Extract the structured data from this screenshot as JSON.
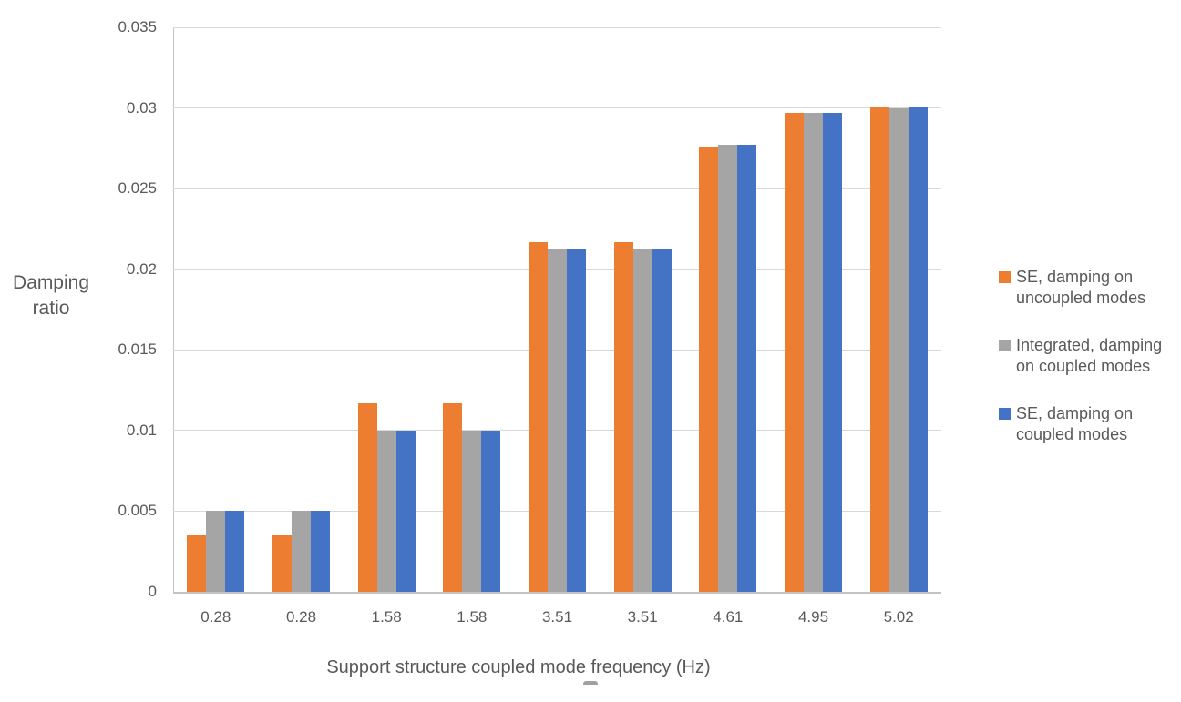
{
  "chart_data": {
    "type": "bar",
    "title": "",
    "xlabel": "Support structure coupled mode frequency (Hz)",
    "ylabel": "Damping ratio",
    "categories": [
      "0.28",
      "0.28",
      "1.58",
      "1.58",
      "3.51",
      "3.51",
      "4.61",
      "4.95",
      "5.02"
    ],
    "series": [
      {
        "name": "SE, damping on uncoupled modes",
        "color": "#ED7D31",
        "values": [
          0.0035,
          0.0035,
          0.0117,
          0.0117,
          0.0217,
          0.0217,
          0.0276,
          0.0297,
          0.0301
        ]
      },
      {
        "name": "Integrated, damping on coupled modes",
        "color": "#A5A5A5",
        "values": [
          0.005,
          0.005,
          0.01,
          0.01,
          0.0212,
          0.0212,
          0.0277,
          0.0297,
          0.03
        ]
      },
      {
        "name": "SE, damping on coupled modes",
        "color": "#4472C4",
        "values": [
          0.005,
          0.005,
          0.01,
          0.01,
          0.0212,
          0.0212,
          0.0277,
          0.0297,
          0.0301
        ]
      }
    ],
    "ylim": [
      0,
      0.035
    ],
    "yticks": [
      0,
      0.005,
      0.01,
      0.015,
      0.02,
      0.025,
      0.03,
      0.035
    ],
    "ytick_labels": [
      "0",
      "0.005",
      "0.01",
      "0.015",
      "0.02",
      "0.025",
      "0.03",
      "0.035"
    ],
    "grid": true,
    "legend_position": "right"
  },
  "axes": {
    "x_title": "Support structure coupled mode frequency (Hz)",
    "y_title_lines": [
      "Damping",
      "ratio"
    ]
  },
  "legend": {
    "items": [
      {
        "color": "#ED7D31",
        "lines": [
          "SE, damping on",
          "uncoupled modes"
        ]
      },
      {
        "color": "#A5A5A5",
        "lines": [
          "Integrated, damping",
          "on coupled modes"
        ]
      },
      {
        "color": "#4472C4",
        "lines": [
          "SE, damping on",
          "coupled modes"
        ]
      }
    ]
  },
  "colors": {
    "text": "#595959",
    "gridline": "#d9d9d9",
    "axis": "#c3c3c3",
    "series_orange": "#ED7D31",
    "series_gray": "#A5A5A5",
    "series_blue": "#4472C4"
  }
}
